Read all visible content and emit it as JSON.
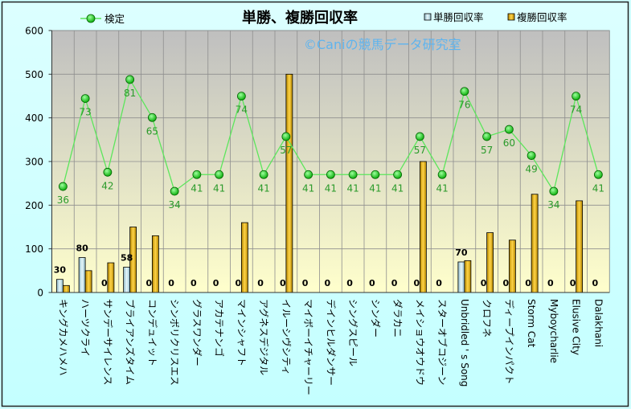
{
  "chart_data": {
    "type": "bar",
    "title": "単勝、複勝回収率",
    "watermark": "©Caniの競馬データ研究室",
    "categories": [
      "キングカメハメハ",
      "ハーツクライ",
      "サンデーサイレンス",
      "ブライアンズタイム",
      "コンデュイット",
      "シンボリクリスエス",
      "グラスワンダー",
      "アカテナンゴ",
      "マインシャフト",
      "アグネスデジタル",
      "イルーシヴシティ",
      "マイボーイチャーリー",
      "デインヒルダンサー",
      "シングスピール",
      "シンダー",
      "ダラカニ",
      "メイショウオウドウ",
      "スターオブコジーン",
      "Unbridled ' s Song",
      "クロフネ",
      "ディープインパクト",
      "Storm Cat",
      "Myboycharlie",
      "Elusive City",
      "Dalakhani"
    ],
    "series": [
      {
        "name": "単勝回収率",
        "type": "bar",
        "color": "#c4e4ee",
        "values": [
          30,
          80,
          0,
          58,
          0,
          0,
          0,
          0,
          0,
          0,
          0,
          0,
          0,
          0,
          0,
          0,
          0,
          0,
          70,
          0,
          0,
          0,
          0,
          0,
          0
        ]
      },
      {
        "name": "複勝回収率",
        "type": "bar",
        "color": "#e8b81e",
        "values": [
          16,
          50,
          68,
          150,
          130,
          0,
          0,
          0,
          160,
          0,
          500,
          0,
          0,
          0,
          0,
          0,
          300,
          0,
          73,
          137,
          120,
          225,
          0,
          210,
          0
        ]
      },
      {
        "name": "検定",
        "type": "line",
        "axis": "secondary",
        "color": "#5ce65c",
        "label_color": "#2a9a2a",
        "values": [
          36,
          73,
          42,
          81,
          65,
          34,
          41,
          41,
          74,
          41,
          57,
          41,
          41,
          41,
          41,
          41,
          57,
          41,
          76,
          57,
          60,
          49,
          34,
          74,
          41
        ]
      }
    ],
    "yticks": [
      0,
      100,
      200,
      300,
      400,
      500,
      600
    ],
    "ylim": [
      0,
      600
    ],
    "y2lim": [
      -8.6,
      101.6
    ],
    "grid": true,
    "legend": "top"
  }
}
